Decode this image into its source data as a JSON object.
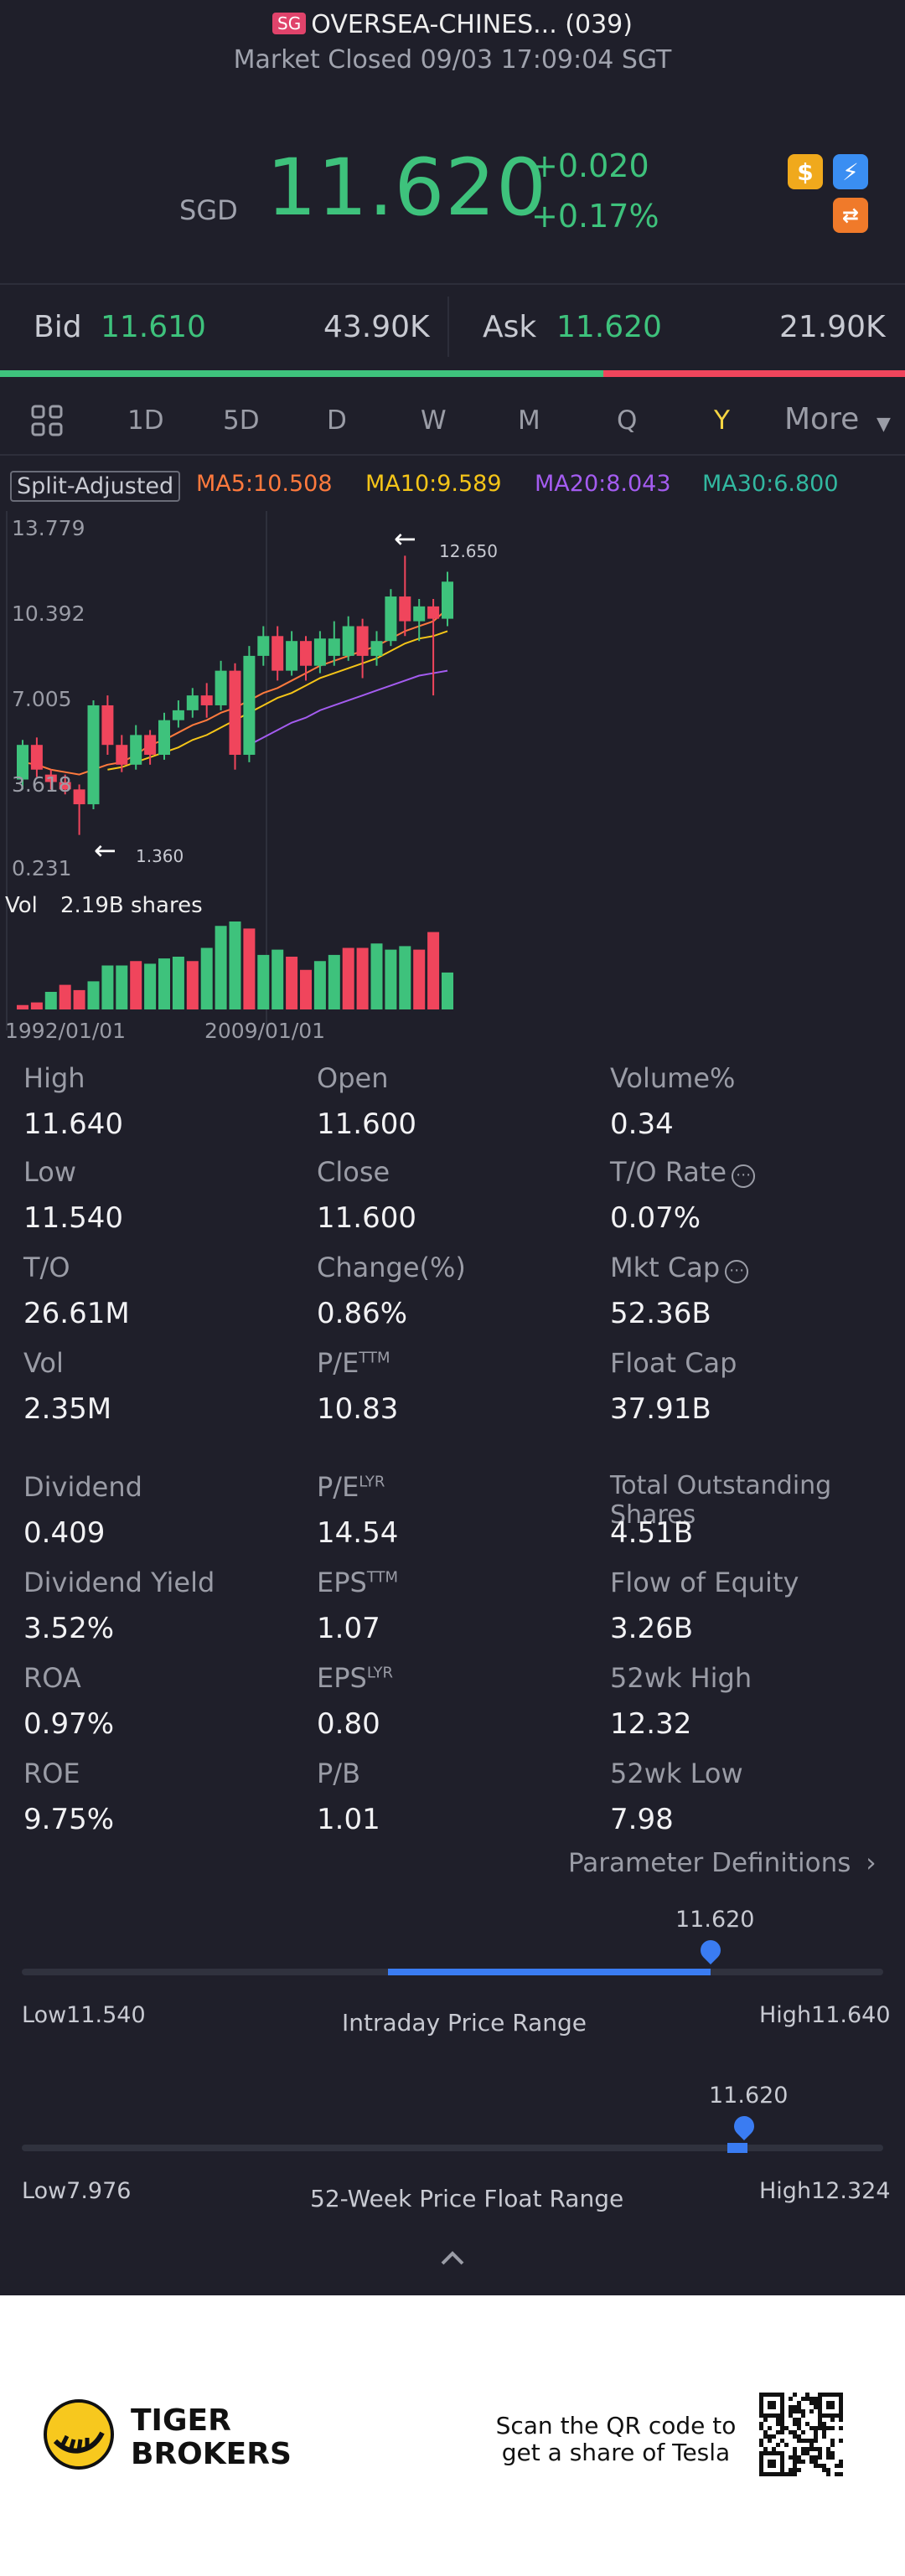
{
  "header": {
    "badge": "SG",
    "title": "OVERSEA-CHINES... (039)",
    "status": "Market Closed 09/03 17:09:04 SGT"
  },
  "quote": {
    "currency": "SGD",
    "price": "11.620",
    "change": "+0.020",
    "change_pct": "+0.17%"
  },
  "bidask": {
    "bid_label": "Bid",
    "bid_price": "11.610",
    "bid_size": "43.90K",
    "ask_label": "Ask",
    "ask_price": "11.620",
    "ask_size": "21.90K",
    "bid_fraction": 0.667
  },
  "tabs": {
    "items": [
      "1D",
      "5D",
      "D",
      "W",
      "M",
      "Q",
      "Y"
    ],
    "active": "Y",
    "more": "More"
  },
  "indicators": {
    "adjust": "Split-Adjusted",
    "ma5": "MA5:10.508",
    "ma10": "MA10:9.589",
    "ma20": "MA20:8.043",
    "ma30": "MA30:6.800"
  },
  "chart_data": {
    "type": "candlestick",
    "y_ticks": [
      "13.779",
      "10.392",
      "7.005",
      "3.618",
      "0.231"
    ],
    "ylim": [
      0.231,
      13.779
    ],
    "x_ticks": [
      "1992/01/01",
      "2009/01/01"
    ],
    "high_annotation": "12.650",
    "low_annotation": "1.360",
    "volume_label": "Vol",
    "volume_value": "2.19B shares",
    "candles": [
      [
        3.6,
        5.0,
        3.2,
        5.2,
        1
      ],
      [
        5.0,
        4.0,
        3.7,
        5.3,
        0
      ],
      [
        3.8,
        3.5,
        3.2,
        4.0,
        0
      ],
      [
        3.5,
        3.2,
        3.0,
        3.8,
        0
      ],
      [
        3.2,
        2.6,
        1.36,
        3.4,
        0
      ],
      [
        2.6,
        6.6,
        2.4,
        6.8,
        1
      ],
      [
        6.6,
        5.0,
        4.6,
        7.0,
        0
      ],
      [
        5.0,
        4.2,
        3.9,
        5.4,
        0
      ],
      [
        4.2,
        5.4,
        4.0,
        5.8,
        1
      ],
      [
        5.4,
        4.6,
        4.2,
        5.6,
        0
      ],
      [
        4.6,
        6.0,
        4.4,
        6.3,
        1
      ],
      [
        6.0,
        6.4,
        5.7,
        6.8,
        1
      ],
      [
        6.4,
        7.0,
        6.1,
        7.3,
        1
      ],
      [
        7.0,
        6.6,
        6.1,
        7.5,
        0
      ],
      [
        6.6,
        8.0,
        6.4,
        8.4,
        1
      ],
      [
        8.0,
        4.6,
        4.0,
        8.3,
        0
      ],
      [
        4.6,
        8.6,
        4.3,
        9.0,
        1
      ],
      [
        8.6,
        9.4,
        8.2,
        9.8,
        1
      ],
      [
        9.4,
        8.0,
        7.6,
        9.8,
        0
      ],
      [
        8.0,
        9.2,
        7.8,
        9.6,
        1
      ],
      [
        9.2,
        8.2,
        7.6,
        9.4,
        0
      ],
      [
        8.2,
        9.3,
        7.9,
        9.6,
        1
      ],
      [
        9.3,
        8.6,
        8.2,
        10.0,
        1
      ],
      [
        8.6,
        9.8,
        8.4,
        10.2,
        1
      ],
      [
        9.8,
        8.6,
        7.7,
        10.1,
        0
      ],
      [
        8.6,
        9.2,
        8.2,
        9.6,
        1
      ],
      [
        9.2,
        11.0,
        9.0,
        11.3,
        1
      ],
      [
        11.0,
        10.0,
        9.4,
        12.65,
        0
      ],
      [
        10.0,
        10.6,
        9.2,
        10.9,
        1
      ],
      [
        10.6,
        10.1,
        7.0,
        10.9,
        0
      ],
      [
        10.1,
        11.6,
        9.8,
        12.0,
        1
      ]
    ],
    "volume_bars": [
      [
        0.05,
        0
      ],
      [
        0.08,
        0
      ],
      [
        0.2,
        1
      ],
      [
        0.28,
        0
      ],
      [
        0.22,
        0
      ],
      [
        0.32,
        1
      ],
      [
        0.5,
        1
      ],
      [
        0.5,
        1
      ],
      [
        0.55,
        0
      ],
      [
        0.52,
        1
      ],
      [
        0.58,
        1
      ],
      [
        0.6,
        1
      ],
      [
        0.55,
        0
      ],
      [
        0.7,
        1
      ],
      [
        0.95,
        1
      ],
      [
        1.0,
        1
      ],
      [
        0.92,
        0
      ],
      [
        0.62,
        1
      ],
      [
        0.68,
        1
      ],
      [
        0.6,
        0
      ],
      [
        0.45,
        0
      ],
      [
        0.55,
        1
      ],
      [
        0.62,
        1
      ],
      [
        0.7,
        0
      ],
      [
        0.7,
        0
      ],
      [
        0.75,
        1
      ],
      [
        0.68,
        1
      ],
      [
        0.72,
        1
      ],
      [
        0.68,
        0
      ],
      [
        0.88,
        0
      ],
      [
        0.42,
        1
      ]
    ],
    "ma5": [
      4.3,
      4.2,
      4.0,
      3.9,
      3.8,
      4.0,
      4.2,
      4.3,
      4.6,
      5.0,
      5.2,
      5.5,
      5.8,
      6.0,
      6.3,
      6.5,
      6.8,
      7.1,
      7.3,
      7.6,
      7.9,
      8.2,
      8.4,
      8.6,
      8.8,
      9.0,
      9.3,
      9.6,
      9.8,
      10.0,
      10.5
    ],
    "ma10": [
      null,
      null,
      null,
      null,
      null,
      null,
      4.0,
      4.1,
      4.3,
      4.5,
      4.7,
      4.9,
      5.2,
      5.4,
      5.7,
      6.0,
      6.3,
      6.6,
      6.9,
      7.1,
      7.4,
      7.7,
      7.9,
      8.1,
      8.3,
      8.5,
      8.8,
      9.1,
      9.3,
      9.4,
      9.6
    ],
    "ma20": [
      null,
      null,
      null,
      null,
      null,
      null,
      null,
      null,
      null,
      null,
      null,
      null,
      null,
      null,
      null,
      null,
      5.0,
      5.3,
      5.6,
      5.9,
      6.1,
      6.4,
      6.6,
      6.8,
      7.0,
      7.2,
      7.4,
      7.6,
      7.8,
      7.9,
      8.0
    ]
  },
  "stats": [
    [
      {
        "label": "High",
        "value": "11.640"
      },
      {
        "label": "Open",
        "value": "11.600"
      },
      {
        "label": "Volume%",
        "value": "0.34"
      }
    ],
    [
      {
        "label": "Low",
        "value": "11.540"
      },
      {
        "label": "Close",
        "value": "11.600"
      },
      {
        "label": "T/O Rate",
        "value": "0.07%"
      }
    ],
    [
      {
        "label": "T/O",
        "value": "26.61M"
      },
      {
        "label": "Change(%)",
        "value": "0.86%"
      },
      {
        "label": "Mkt Cap",
        "value": "52.36B"
      }
    ],
    [
      {
        "label": "Vol",
        "value": "2.35M"
      },
      {
        "label": "P/E",
        "sup": "TTM",
        "value": "10.83"
      },
      {
        "label": "Float Cap",
        "value": "37.91B"
      }
    ],
    [
      {
        "label": "Dividend",
        "value": "0.409"
      },
      {
        "label": "P/E",
        "sup": "LYR",
        "value": "14.54"
      },
      {
        "label": "Total Outstanding Shares",
        "value": "4.51B"
      }
    ],
    [
      {
        "label": "Dividend Yield",
        "value": "3.52%"
      },
      {
        "label": "EPS",
        "sup": "TTM",
        "value": "1.07"
      },
      {
        "label": "Flow of Equity",
        "value": "3.26B"
      }
    ],
    [
      {
        "label": "ROA",
        "value": "0.97%"
      },
      {
        "label": "EPS",
        "sup": "LYR",
        "value": "0.80"
      },
      {
        "label": "52wk High",
        "value": "12.32"
      }
    ],
    [
      {
        "label": "ROE",
        "value": "9.75%"
      },
      {
        "label": "P/B",
        "value": "1.01"
      },
      {
        "label": "52wk Low",
        "value": "7.98"
      }
    ]
  ],
  "param_link": "Parameter Definitions",
  "intraday": {
    "current": "11.620",
    "low": "Low11.540",
    "high": "High11.640",
    "title": "Intraday Price Range",
    "low_value": 11.54,
    "high_value": 11.64,
    "current_value": 11.62,
    "open_value": 11.6
  },
  "week52": {
    "current": "11.620",
    "low": "Low7.976",
    "high": "High12.324",
    "title": "52-Week Price Float Range",
    "low_value": 7.976,
    "high_value": 12.324,
    "current_value": 11.62
  },
  "footer": {
    "brand_line1": "TIGER",
    "brand_line2": "BROKERS",
    "promo_line1": "Scan the QR code to",
    "promo_line2": "get a share of Tesla"
  },
  "colors": {
    "up": "#3ec27c",
    "down": "#f0455c",
    "ma5": "#ff7a3d",
    "ma10": "#f5c518",
    "ma20": "#a45cf0",
    "ma30": "#32b8a0",
    "accent": "#3a7cf2",
    "active_tab": "#f5d442"
  },
  "icons": [
    "dollar-icon",
    "flash-icon",
    "orange-swap-icon",
    "grid-icon",
    "chevron-down-icon",
    "chevron-right-icon",
    "chevron-up-icon",
    "tiger-logo-icon",
    "qr-code-icon"
  ]
}
